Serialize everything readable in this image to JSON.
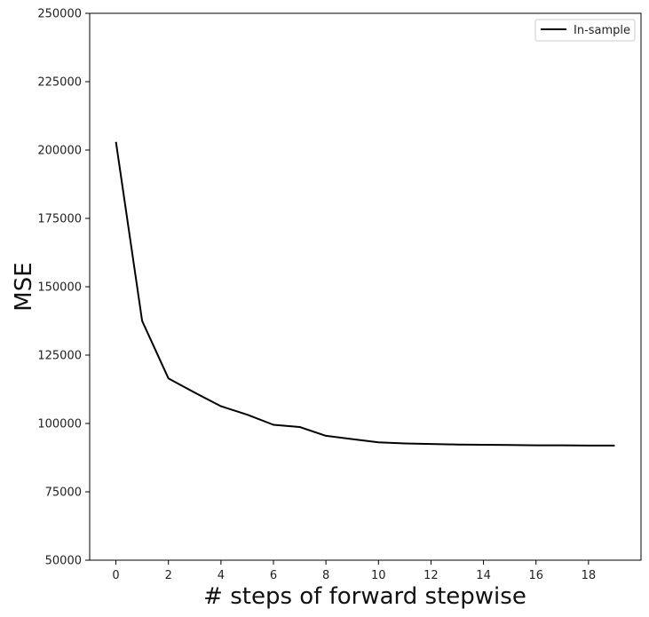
{
  "chart_data": {
    "type": "line",
    "xlabel": "# steps of forward stepwise",
    "ylabel": "MSE",
    "xlim": [
      -1,
      20
    ],
    "ylim": [
      50000,
      250000
    ],
    "xticks": [
      0,
      2,
      4,
      6,
      8,
      10,
      12,
      14,
      16,
      18
    ],
    "yticks": [
      50000,
      75000,
      100000,
      125000,
      150000,
      175000,
      200000,
      225000,
      250000
    ],
    "grid": false,
    "legend": "top-right",
    "series": [
      {
        "name": "In-sample",
        "color": "#000000",
        "x": [
          0,
          1,
          2,
          3,
          4,
          5,
          6,
          7,
          8,
          9,
          10,
          11,
          12,
          13,
          14,
          15,
          16,
          17,
          18,
          19
        ],
        "values": [
          203000,
          137500,
          116500,
          111300,
          106300,
          103200,
          99500,
          98700,
          95500,
          94300,
          93100,
          92700,
          92500,
          92300,
          92200,
          92100,
          92000,
          92000,
          91900,
          91900
        ]
      }
    ]
  }
}
